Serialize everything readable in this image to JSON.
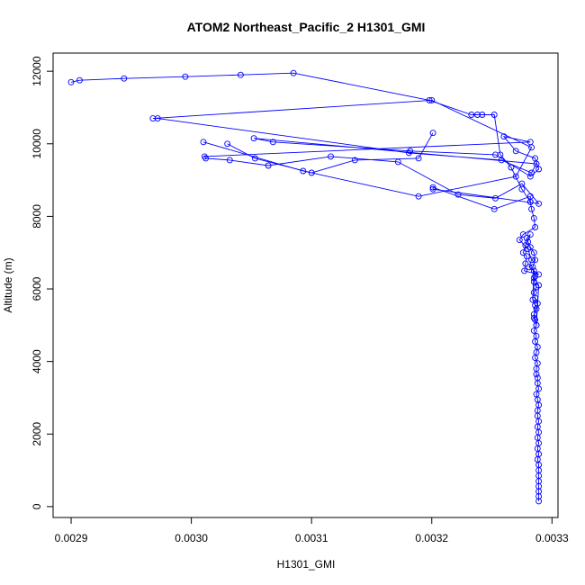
{
  "chart_data": {
    "type": "line",
    "title": "ATOM2 Northeast_Pacific_2 H1301_GMI",
    "xlabel": "H1301_GMI",
    "ylabel": "Altitude (m)",
    "xlim": [
      0.002885,
      0.003305
    ],
    "ylim": [
      -300,
      12500
    ],
    "x_ticks": [
      0.0029,
      0.003,
      0.0031,
      0.0032,
      0.0033
    ],
    "x_tick_labels": [
      "0.0029",
      "0.0030",
      "0.0031",
      "0.0032",
      "0.0033"
    ],
    "y_ticks": [
      0,
      2000,
      4000,
      6000,
      8000,
      10000,
      12000
    ],
    "y_tick_labels": [
      "0",
      "2000",
      "4000",
      "6000",
      "8000",
      "10000",
      "12000"
    ],
    "grid": false,
    "line_color": "#0000ff",
    "marker": "open-circle",
    "series": [
      {
        "x": [
          0.003289,
          0.003289,
          0.003289,
          0.003289,
          0.003289,
          0.003289,
          0.003289,
          0.003289,
          0.003288,
          0.003289,
          0.003288,
          0.003289,
          0.003288,
          0.003289,
          0.003288,
          0.003289,
          0.003288,
          0.003288,
          0.003289,
          0.003288,
          0.003287,
          0.003289,
          0.003288,
          0.003288,
          0.003287,
          0.003287,
          0.003288,
          0.003286,
          0.003287,
          0.003288,
          0.003286,
          0.003287,
          0.003285,
          0.003287,
          0.003286,
          0.003285,
          0.003287,
          0.003288,
          0.003286,
          0.003285,
          0.003287,
          0.003285,
          0.003286,
          0.003285,
          0.003284,
          0.003286,
          0.003285,
          0.003287,
          0.003289,
          0.003285,
          0.003284,
          0.003286,
          0.003285,
          0.003282,
          0.00328,
          0.003279,
          0.003282,
          0.003278,
          0.003276,
          0.003279,
          0.003278,
          0.003277,
          0.003289,
          0.003281,
          0.003283,
          0.00328,
          0.003273,
          0.003276,
          0.003286,
          0.003285,
          0.003283,
          0.003282,
          0.003282,
          0.003252,
          0.003201,
          0.003201,
          0.003289,
          0.003275,
          0.003253,
          0.003222,
          0.003172,
          0.003116,
          0.003064,
          0.003032,
          0.003012,
          0.003011,
          0.003282,
          0.00326,
          0.00327,
          0.003286,
          0.003289,
          0.003282,
          0.003253,
          0.003182,
          0.003068,
          0.003052,
          0.003287,
          0.003283,
          0.003258,
          0.003181,
          0.002972,
          0.002968,
          0.0032,
          0.003283,
          0.00327,
          0.003189,
          0.003093,
          0.00301
        ],
        "y": [
          150,
          280,
          420,
          560,
          700,
          850,
          1000,
          1150,
          1300,
          1450,
          1600,
          1750,
          1900,
          2050,
          2200,
          2350,
          2500,
          2650,
          2800,
          2950,
          3100,
          3250,
          3400,
          3550,
          3650,
          3800,
          3950,
          4100,
          4250,
          4400,
          4550,
          4700,
          4850,
          5000,
          5150,
          5300,
          5450,
          5600,
          5750,
          5900,
          6050,
          6200,
          6350,
          6500,
          5700,
          5550,
          5200,
          5000,
          6100,
          6300,
          6600,
          6800,
          7000,
          7150,
          7300,
          7400,
          7500,
          7200,
          7000,
          6900,
          6700,
          6500,
          6400,
          6600,
          6800,
          7100,
          7350,
          7500,
          7700,
          7950,
          8200,
          8400,
          8550,
          8200,
          8800,
          8750,
          8350,
          8900,
          8500,
          8600,
          9500,
          9650,
          9400,
          9550,
          9600,
          9650,
          10050,
          10200,
          9800,
          9600,
          9300,
          9100,
          9700,
          9800,
          10050,
          10150,
          9450,
          9200,
          9550,
          9750,
          10700,
          10700,
          11200,
          9900,
          9100,
          8550,
          9250,
          10050
        ],
        "style": "trace-main"
      },
      {
        "x": [
          0.0029,
          0.002907,
          0.002944,
          0.002995,
          0.003041,
          0.003085,
          0.003198,
          0.003233,
          0.003238,
          0.003242,
          0.003252,
          0.003257,
          0.003266,
          0.003275,
          0.003282
        ],
        "y": [
          11700,
          11750,
          11800,
          11850,
          11900,
          11950,
          11200,
          10800,
          10800,
          10800,
          10800,
          9700,
          9350,
          8750,
          8400
        ],
        "style": "trace-top"
      },
      {
        "x": [
          0.003201,
          0.003189,
          0.003136,
          0.0031,
          0.003053,
          0.00303
        ],
        "y": [
          10300,
          9600,
          9550,
          9200,
          9600,
          10000
        ],
        "style": "trace-mid"
      }
    ]
  }
}
